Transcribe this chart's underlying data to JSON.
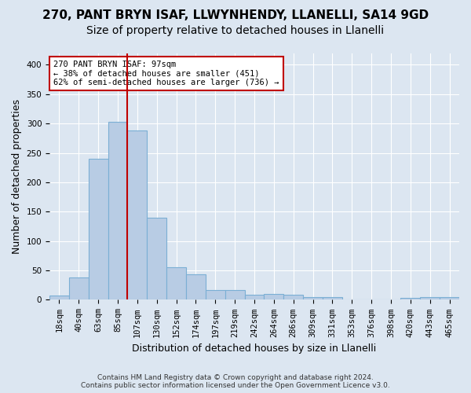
{
  "title1": "270, PANT BRYN ISAF, LLWYNHENDY, LLANELLI, SA14 9GD",
  "title2": "Size of property relative to detached houses in Llanelli",
  "xlabel": "Distribution of detached houses by size in Llanelli",
  "ylabel": "Number of detached properties",
  "categories": [
    "18sqm",
    "40sqm",
    "63sqm",
    "85sqm",
    "107sqm",
    "130sqm",
    "152sqm",
    "174sqm",
    "197sqm",
    "219sqm",
    "242sqm",
    "264sqm",
    "286sqm",
    "309sqm",
    "331sqm",
    "353sqm",
    "376sqm",
    "398sqm",
    "420sqm",
    "443sqm",
    "465sqm"
  ],
  "values": [
    7,
    38,
    240,
    303,
    288,
    140,
    55,
    43,
    17,
    17,
    9,
    10,
    8,
    5,
    4,
    1,
    0,
    1,
    3,
    5,
    4
  ],
  "bar_color": "#b8cce4",
  "bar_edgecolor": "#7bafd4",
  "vline_x_index": 4,
  "vline_color": "#c00000",
  "annotation_text": "270 PANT BRYN ISAF: 97sqm\n← 38% of detached houses are smaller (451)\n62% of semi-detached houses are larger (736) →",
  "annotation_box_edgecolor": "#c00000",
  "background_color": "#dce6f1",
  "plot_bg_color": "#dce6f1",
  "footer": "Contains HM Land Registry data © Crown copyright and database right 2024.\nContains public sector information licensed under the Open Government Licence v3.0.",
  "ylim": [
    0,
    420
  ],
  "yticks": [
    0,
    50,
    100,
    150,
    200,
    250,
    300,
    350,
    400
  ],
  "grid_color": "#ffffff",
  "title1_fontsize": 11,
  "title2_fontsize": 10,
  "xlabel_fontsize": 9,
  "ylabel_fontsize": 9,
  "tick_fontsize": 7.5,
  "footer_fontsize": 6.5
}
